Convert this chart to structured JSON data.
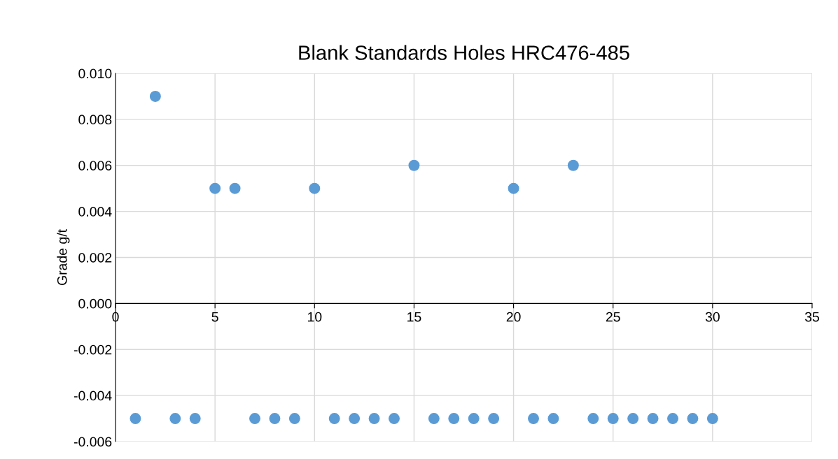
{
  "chart_data": {
    "type": "scatter",
    "title": "Blank Standards Holes HRC476-485",
    "ylabel": "Grade g/t",
    "x": [
      1,
      2,
      3,
      4,
      5,
      6,
      7,
      8,
      9,
      10,
      11,
      12,
      13,
      14,
      15,
      16,
      17,
      18,
      19,
      20,
      21,
      22,
      23,
      24,
      25,
      26,
      27,
      28,
      29,
      30
    ],
    "series": [
      {
        "color": "#5b9bd5",
        "values": [
          -0.005,
          0.009,
          -0.005,
          -0.005,
          0.005,
          0.005,
          -0.005,
          -0.005,
          -0.005,
          0.005,
          -0.005,
          -0.005,
          -0.005,
          -0.005,
          0.006,
          -0.005,
          -0.005,
          -0.005,
          -0.005,
          0.005,
          -0.005,
          -0.005,
          0.006,
          -0.005,
          -0.005,
          -0.005,
          -0.005,
          -0.005,
          -0.005,
          -0.005
        ]
      }
    ],
    "xlim": [
      0,
      35
    ],
    "xticks": [
      0,
      5,
      10,
      15,
      20,
      25,
      30,
      35
    ],
    "ylim": [
      -0.006,
      0.01
    ],
    "yticks": [
      {
        "value": -0.006,
        "label": "-0.006"
      },
      {
        "value": -0.004,
        "label": "-0.004"
      },
      {
        "value": -0.002,
        "label": "-0.002"
      },
      {
        "value": 0,
        "label": "0.000"
      },
      {
        "value": 0.002,
        "label": "0.002"
      },
      {
        "value": 0.004,
        "label": "0.004"
      },
      {
        "value": 0.006,
        "label": "0.006"
      },
      {
        "value": 0.008,
        "label": "0.008"
      },
      {
        "value": 0.01,
        "label": "0.010"
      }
    ],
    "grid": true,
    "marker": "circle"
  }
}
